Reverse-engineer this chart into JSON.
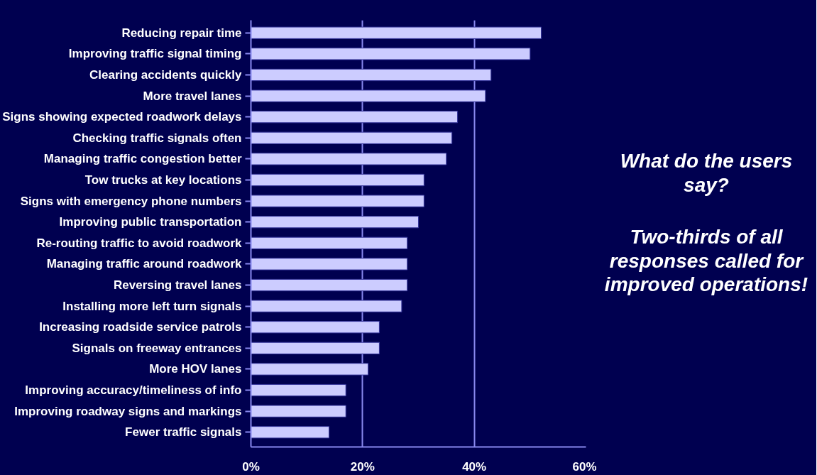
{
  "chart_data": {
    "type": "bar",
    "orientation": "horizontal",
    "categories": [
      "Reducing repair time",
      "Improving traffic signal timing",
      "Clearing accidents quickly",
      "More travel lanes",
      "Signs showing expected roadwork delays",
      "Checking traffic signals often",
      "Managing traffic congestion better",
      "Tow trucks at key locations",
      "Signs with emergency phone numbers",
      "Improving public transportation",
      "Re-routing traffic to avoid roadwork",
      "Managing traffic around roadwork",
      "Reversing travel lanes",
      "Installing more left turn signals",
      "Increasing roadside service patrols",
      "Signals on freeway entrances",
      "More HOV lanes",
      "Improving accuracy/timeliness of info",
      "Improving roadway signs and markings",
      "Fewer traffic signals"
    ],
    "values": [
      52,
      50,
      43,
      42,
      37,
      36,
      35,
      31,
      31,
      30,
      28,
      28,
      28,
      27,
      23,
      23,
      21,
      17,
      17,
      14
    ],
    "color": "#ccccff",
    "xlim": [
      0,
      60
    ],
    "xticks": [
      {
        "value": 0,
        "label": "0%"
      },
      {
        "value": 20,
        "label": "20%"
      },
      {
        "value": 40,
        "label": "40%"
      },
      {
        "value": 60,
        "label": "60%"
      }
    ],
    "grid": "x",
    "annotations": [
      "What do the users say?",
      "Two-thirds of all responses called for improved operations!"
    ]
  }
}
